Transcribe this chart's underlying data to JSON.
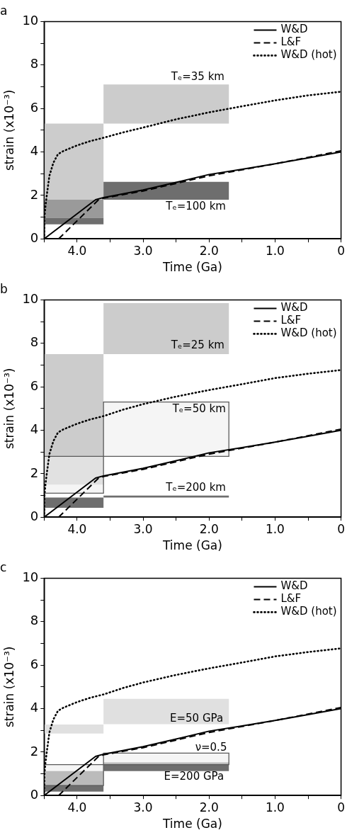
{
  "chart_data": [
    {
      "type": "line",
      "title": "a",
      "xlabel": "Time (Ga)",
      "ylabel": "strain (x10⁻³)",
      "xlim": [
        4.5,
        0
      ],
      "ylim": [
        0,
        10
      ],
      "xticks": [
        {
          "value": 4.5,
          "label": null
        },
        {
          "value": 4,
          "label": "4.0"
        },
        {
          "value": 3.5,
          "label": null
        },
        {
          "value": 3,
          "label": "3.0"
        },
        {
          "value": 2.5,
          "label": null
        },
        {
          "value": 2,
          "label": "2.0"
        },
        {
          "value": 1.5,
          "label": null
        },
        {
          "value": 1,
          "label": "1.0"
        },
        {
          "value": 0.5,
          "label": null
        },
        {
          "value": 0,
          "label": "0"
        }
      ],
      "yticks": [
        0,
        {
          "value": 1,
          "label": null
        },
        2,
        {
          "value": 3,
          "label": null
        },
        4,
        {
          "value": 5,
          "label": null
        },
        6,
        {
          "value": 7,
          "label": null
        },
        8,
        {
          "value": 9,
          "label": null
        },
        10
      ],
      "grid": false,
      "legend": "top right",
      "series": [
        {
          "type": "area",
          "color": "#cccccc",
          "x": [
            4.5,
            3.6
          ],
          "values": [
            null,
            null
          ],
          "upper": [
            5.3,
            5.3
          ],
          "lower": [
            1.8,
            1.8
          ]
        },
        {
          "type": "area",
          "color": "#9a9a9a",
          "x": [
            4.5,
            3.6
          ],
          "values": [
            null,
            null
          ],
          "upper": [
            1.8,
            1.8
          ],
          "lower": [
            0.97,
            0.97
          ]
        },
        {
          "type": "area",
          "color": "#6e6e6e",
          "x": [
            4.5,
            3.6
          ],
          "values": [
            null,
            null
          ],
          "upper": [
            0.97,
            0.97
          ],
          "lower": [
            0.67,
            0.67
          ]
        },
        {
          "type": "area",
          "color": "#cccccc",
          "x": [
            3.6,
            1.7
          ],
          "values": [
            null,
            null
          ],
          "upper": [
            7.1,
            7.1
          ],
          "lower": [
            5.3,
            5.3
          ]
        },
        {
          "type": "area",
          "color": "#6e6e6e",
          "x": [
            3.6,
            1.7
          ],
          "values": [
            null,
            null
          ],
          "upper": [
            2.62,
            2.62
          ],
          "lower": [
            1.8,
            1.8
          ]
        },
        {
          "type": "line",
          "name": "W&D",
          "color": "#000000",
          "line_style": "solid",
          "x": [
            4.5,
            3.72,
            3.6,
            3.0,
            2.5,
            2.0,
            1.5,
            1.0,
            0.5,
            0
          ],
          "values": [
            0,
            1.8,
            1.9,
            2.25,
            2.6,
            2.96,
            3.2,
            3.45,
            3.72,
            4.0
          ]
        },
        {
          "type": "line",
          "name": "L&F",
          "color": "#000000",
          "line_style": "dashed",
          "x": [
            4.28,
            3.68,
            3.6,
            3.0,
            2.0,
            1.0,
            0
          ],
          "values": [
            0,
            1.78,
            1.87,
            2.2,
            2.9,
            3.45,
            4.05
          ]
        },
        {
          "type": "line",
          "name": "W&D (hot)",
          "color": "#000000",
          "line_style": "dotted",
          "x": [
            4.5,
            4.495,
            4.48,
            4.46,
            4.42,
            4.36,
            4.29,
            4.2,
            4.0,
            3.8,
            3.6,
            3.3,
            3.0,
            2.5,
            2.0,
            1.5,
            1.0,
            0.5,
            0
          ],
          "values": [
            0,
            1,
            1.5,
            2,
            2.9,
            3.5,
            3.9,
            4.05,
            4.3,
            4.5,
            4.65,
            4.9,
            5.12,
            5.5,
            5.82,
            6.1,
            6.37,
            6.6,
            6.77
          ]
        }
      ],
      "annotations": [
        "Tₑ=35 km",
        "Tₑ=100 km"
      ]
    },
    {
      "type": "line",
      "title": "b",
      "xlabel": "Time (Ga)",
      "ylabel": "strain (x10⁻³)",
      "xlim": [
        4.5,
        0
      ],
      "ylim": [
        0,
        10
      ],
      "xticks": [
        {
          "value": 4.5,
          "label": null
        },
        {
          "value": 4,
          "label": "4.0"
        },
        {
          "value": 3.5,
          "label": null
        },
        {
          "value": 3,
          "label": "3.0"
        },
        {
          "value": 2.5,
          "label": null
        },
        {
          "value": 2,
          "label": "2.0"
        },
        {
          "value": 1.5,
          "label": null
        },
        {
          "value": 1,
          "label": "1.0"
        },
        {
          "value": 0.5,
          "label": null
        },
        {
          "value": 0,
          "label": "0"
        }
      ],
      "yticks": [
        0,
        {
          "value": 1,
          "label": null
        },
        2,
        {
          "value": 3,
          "label": null
        },
        4,
        {
          "value": 5,
          "label": null
        },
        6,
        {
          "value": 7,
          "label": null
        },
        8,
        {
          "value": 9,
          "label": null
        },
        10
      ],
      "grid": false,
      "legend": "top right",
      "series": [
        {
          "type": "area",
          "color": "#cccccc",
          "x": [
            4.5,
            3.6
          ],
          "values": [
            null,
            null
          ],
          "upper": [
            7.5,
            7.5
          ],
          "lower": [
            1.5,
            1.5
          ]
        },
        {
          "type": "area",
          "color": "#cccccc",
          "x": [
            3.6,
            1.7
          ],
          "values": [
            null,
            null
          ],
          "upper": [
            9.85,
            9.85
          ],
          "lower": [
            7.5,
            7.5
          ]
        },
        {
          "type": "area",
          "color": "#eeeeee",
          "line_style": "solid",
          "x": [
            4.5,
            3.6
          ],
          "values": [
            null,
            null
          ],
          "upper": [
            2.8,
            2.8
          ],
          "lower": [
            1.1,
            1.1
          ]
        },
        {
          "type": "area",
          "color": "#eeeeee",
          "line_style": "solid",
          "x": [
            3.6,
            1.7
          ],
          "values": [
            null,
            null
          ],
          "upper": [
            5.3,
            5.3
          ],
          "lower": [
            2.8,
            2.8
          ]
        },
        {
          "type": "area",
          "color": "#6e6e6e",
          "x": [
            4.5,
            3.6
          ],
          "values": [
            null,
            null
          ],
          "upper": [
            0.9,
            0.9
          ],
          "lower": [
            0.43,
            0.43
          ]
        },
        {
          "type": "area",
          "color": "#6e6e6e",
          "x": [
            3.6,
            1.7
          ],
          "values": [
            null,
            null
          ],
          "upper": [
            0.99,
            0.99
          ],
          "lower": [
            0.9,
            0.9
          ]
        },
        {
          "type": "line",
          "name": "W&D",
          "color": "#000000",
          "line_style": "solid",
          "x": [
            4.5,
            3.72,
            3.6,
            3.0,
            2.5,
            2.0,
            1.5,
            1.0,
            0.5,
            0
          ],
          "values": [
            0,
            1.8,
            1.9,
            2.25,
            2.6,
            2.96,
            3.2,
            3.45,
            3.72,
            4.0
          ]
        },
        {
          "type": "line",
          "name": "L&F",
          "color": "#000000",
          "line_style": "dashed",
          "x": [
            4.28,
            3.68,
            3.6,
            3.0,
            2.0,
            1.0,
            0
          ],
          "values": [
            0,
            1.78,
            1.87,
            2.2,
            2.9,
            3.45,
            4.05
          ]
        },
        {
          "type": "line",
          "name": "W&D (hot)",
          "color": "#000000",
          "line_style": "dotted",
          "x": [
            4.5,
            4.495,
            4.48,
            4.46,
            4.42,
            4.36,
            4.29,
            4.2,
            4.0,
            3.8,
            3.6,
            3.3,
            3.0,
            2.5,
            2.0,
            1.5,
            1.0,
            0.5,
            0
          ],
          "values": [
            0,
            1,
            1.5,
            2,
            2.9,
            3.5,
            3.9,
            4.05,
            4.3,
            4.5,
            4.65,
            4.95,
            5.2,
            5.55,
            5.85,
            6.12,
            6.4,
            6.6,
            6.77
          ]
        }
      ],
      "annotations": [
        "Tₑ=25 km",
        "Tₑ=50 km",
        "Tₑ=200 km"
      ]
    },
    {
      "type": "line",
      "title": "c",
      "xlabel": "Time (Ga)",
      "ylabel": "strain (x10⁻³)",
      "xlim": [
        4.5,
        0
      ],
      "ylim": [
        0,
        10
      ],
      "xticks": [
        {
          "value": 4.5,
          "label": null
        },
        {
          "value": 4,
          "label": "4.0"
        },
        {
          "value": 3.5,
          "label": null
        },
        {
          "value": 3,
          "label": "3.0"
        },
        {
          "value": 2.5,
          "label": null
        },
        {
          "value": 2,
          "label": "2.0"
        },
        {
          "value": 1.5,
          "label": null
        },
        {
          "value": 1,
          "label": "1.0"
        },
        {
          "value": 0.5,
          "label": null
        },
        {
          "value": 0,
          "label": "0"
        }
      ],
      "yticks": [
        0,
        {
          "value": 1,
          "label": null
        },
        2,
        {
          "value": 3,
          "label": null
        },
        4,
        {
          "value": 5,
          "label": null
        },
        6,
        {
          "value": 7,
          "label": null
        },
        8,
        {
          "value": 9,
          "label": null
        },
        10
      ],
      "grid": false,
      "legend": "top right",
      "series": [
        {
          "type": "area",
          "color": "#e0e0e0",
          "x": [
            4.5,
            3.6
          ],
          "values": [
            null,
            null
          ],
          "upper": [
            3.27,
            3.27
          ],
          "lower": [
            2.85,
            2.85
          ]
        },
        {
          "type": "area",
          "color": "#e0e0e0",
          "x": [
            3.6,
            1.7
          ],
          "values": [
            null,
            null
          ],
          "upper": [
            4.45,
            4.45
          ],
          "lower": [
            3.28,
            3.28
          ]
        },
        {
          "type": "area",
          "color": "#6e6e6e",
          "x": [
            4.5,
            3.6
          ],
          "values": [
            null,
            null
          ],
          "upper": [
            1.12,
            1.12
          ],
          "lower": [
            0.18,
            0.18
          ]
        },
        {
          "type": "area",
          "color": "#6e6e6e",
          "x": [
            3.6,
            1.7
          ],
          "values": [
            null,
            null
          ],
          "upper": [
            1.52,
            1.52
          ],
          "lower": [
            1.12,
            1.12
          ]
        },
        {
          "type": "area",
          "color": "#eeeeee",
          "line_style": "solid",
          "x": [
            4.5,
            3.6
          ],
          "values": [
            null,
            null
          ],
          "upper": [
            1.42,
            1.42
          ],
          "lower": [
            0.46,
            0.46
          ]
        },
        {
          "type": "area",
          "color": "#eeeeee",
          "line_style": "solid",
          "x": [
            3.6,
            1.7
          ],
          "values": [
            null,
            null
          ],
          "upper": [
            1.95,
            1.95
          ],
          "lower": [
            1.42,
            1.42
          ]
        },
        {
          "type": "line",
          "name": "W&D",
          "color": "#000000",
          "line_style": "solid",
          "x": [
            4.5,
            3.72,
            3.6,
            3.0,
            2.5,
            2.0,
            1.5,
            1.0,
            0.5,
            0
          ],
          "values": [
            0,
            1.8,
            1.9,
            2.25,
            2.6,
            2.96,
            3.2,
            3.45,
            3.72,
            4.0
          ]
        },
        {
          "type": "line",
          "name": "L&F",
          "color": "#000000",
          "line_style": "dashed",
          "x": [
            4.28,
            3.68,
            3.6,
            3.0,
            2.0,
            1.0,
            0
          ],
          "values": [
            0,
            1.78,
            1.87,
            2.2,
            2.9,
            3.45,
            4.05
          ]
        },
        {
          "type": "line",
          "name": "W&D (hot)",
          "color": "#000000",
          "line_style": "dotted",
          "x": [
            4.5,
            4.495,
            4.48,
            4.46,
            4.42,
            4.36,
            4.29,
            4.2,
            4.0,
            3.8,
            3.6,
            3.3,
            3.0,
            2.5,
            2.0,
            1.5,
            1.0,
            0.5,
            0
          ],
          "values": [
            0,
            1,
            1.5,
            2,
            2.9,
            3.5,
            3.9,
            4.05,
            4.3,
            4.5,
            4.65,
            4.95,
            5.2,
            5.55,
            5.85,
            6.12,
            6.4,
            6.6,
            6.77
          ]
        }
      ],
      "annotations": [
        "E=50 GPa",
        "ν=0.5",
        "E=200 GPa"
      ]
    }
  ]
}
